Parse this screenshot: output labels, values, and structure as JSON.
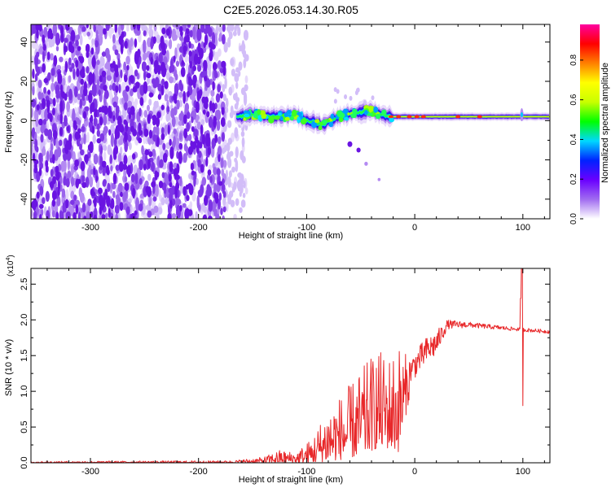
{
  "title": "C2E5.2026.053.14.30.R05",
  "chart_data": [
    {
      "type": "heatmap",
      "name": "spectrogram",
      "xlabel": "Height of straight line (km)",
      "ylabel": "Frequency (Hz)",
      "xlim": [
        -355,
        125
      ],
      "ylim": [
        -50,
        49
      ],
      "xticks": [
        -300,
        -200,
        -100,
        0,
        100
      ],
      "xtick_labels": [
        "-300",
        "-200",
        "-100",
        "0",
        "100"
      ],
      "yticks": [
        -40,
        -20,
        0,
        20,
        40
      ],
      "ytick_labels": [
        "-40",
        "-20",
        "0",
        "20",
        "40"
      ],
      "noise_region_x": [
        -355,
        -160
      ],
      "signal_band": [
        {
          "x": -165,
          "f": 2
        },
        {
          "x": -150,
          "f": 3
        },
        {
          "x": -130,
          "f": 2
        },
        {
          "x": -110,
          "f": 3
        },
        {
          "x": -100,
          "f": 0
        },
        {
          "x": -85,
          "f": -2
        },
        {
          "x": -70,
          "f": 2
        },
        {
          "x": -55,
          "f": 4
        },
        {
          "x": -40,
          "f": 5
        },
        {
          "x": -25,
          "f": 2
        },
        {
          "x": 0,
          "f": 2
        },
        {
          "x": 50,
          "f": 2
        },
        {
          "x": 125,
          "f": 2
        }
      ],
      "artifact_tail": [
        {
          "x": -60,
          "f": -12
        },
        {
          "x": -52,
          "f": -15
        },
        {
          "x": -45,
          "f": -22
        },
        {
          "x": -33,
          "f": -30
        }
      ],
      "colorbar": {
        "label": "Normalized spectral amplitude",
        "range": [
          0,
          0.98
        ],
        "ticks": [
          0.0,
          0.2,
          0.4,
          0.6,
          0.8
        ],
        "tick_labels": [
          "0.0",
          "0.2",
          "0.4",
          "0.6",
          "0.8"
        ],
        "colors": [
          "#ffffff",
          "#a06cf0",
          "#6a00ff",
          "#0022ff",
          "#00d8ff",
          "#00ff00",
          "#c8ff00",
          "#ffff00",
          "#ff8000",
          "#ff0000",
          "#ff00a0"
        ]
      }
    },
    {
      "type": "line",
      "name": "snr",
      "xlabel": "Height of straight line (km)",
      "ylabel": "SNR (10 * v/v)",
      "yscale_label": "(x10",
      "yscale_exp": "4",
      "yscale_close": ")",
      "xlim": [
        -355,
        125
      ],
      "ylim": [
        0,
        2.72
      ],
      "xticks": [
        -300,
        -200,
        -100,
        0,
        100
      ],
      "xtick_labels": [
        "-300",
        "-200",
        "-100",
        "0",
        "100"
      ],
      "yticks": [
        0.0,
        0.5,
        1.0,
        1.5,
        2.0,
        2.5
      ],
      "ytick_labels": [
        "0.0",
        "0.5",
        "1.0",
        "1.5",
        "2.0",
        "2.5"
      ],
      "color": "#e8282a",
      "envelope": [
        {
          "x": -355,
          "lo": 0.0,
          "hi": 0.02
        },
        {
          "x": -170,
          "lo": 0.0,
          "hi": 0.03
        },
        {
          "x": -140,
          "lo": 0.0,
          "hi": 0.08
        },
        {
          "x": -125,
          "lo": 0.0,
          "hi": 0.18
        },
        {
          "x": -110,
          "lo": 0.0,
          "hi": 0.15
        },
        {
          "x": -95,
          "lo": 0.0,
          "hi": 0.35
        },
        {
          "x": -80,
          "lo": 0.02,
          "hi": 0.8
        },
        {
          "x": -65,
          "lo": 0.05,
          "hi": 1.0
        },
        {
          "x": -50,
          "lo": 0.1,
          "hi": 1.3
        },
        {
          "x": -35,
          "lo": 0.2,
          "hi": 1.6
        },
        {
          "x": -25,
          "lo": 0.2,
          "hi": 1.5
        },
        {
          "x": -15,
          "lo": 0.15,
          "hi": 1.7
        },
        {
          "x": -5,
          "lo": 0.9,
          "hi": 1.45
        },
        {
          "x": 10,
          "lo": 1.15,
          "hi": 1.75
        },
        {
          "x": 20,
          "lo": 1.3,
          "hi": 1.85
        },
        {
          "x": 30,
          "lo": 1.8,
          "hi": 2.0
        },
        {
          "x": 50,
          "lo": 1.85,
          "hi": 1.97
        },
        {
          "x": 90,
          "lo": 1.82,
          "hi": 1.9
        },
        {
          "x": 125,
          "lo": 1.78,
          "hi": 1.86
        }
      ],
      "spike": {
        "x": 99,
        "lo": 0.8,
        "hi": 2.72
      }
    }
  ]
}
